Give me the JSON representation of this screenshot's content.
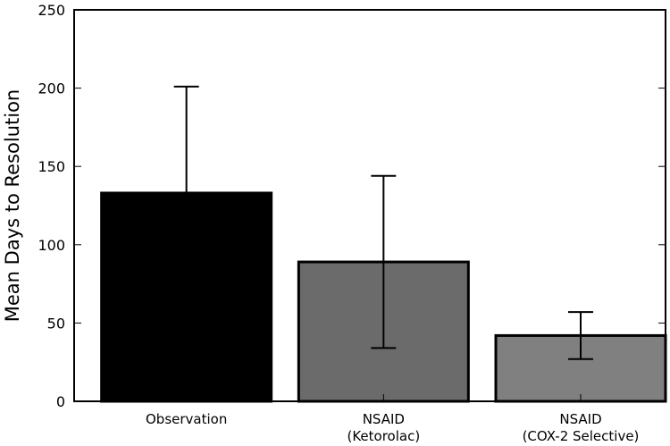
{
  "chart_data": {
    "type": "bar",
    "title": "",
    "xlabel": "",
    "ylabel": "Mean Days to Resolution",
    "ylim": [
      0,
      250
    ],
    "yticks": [
      0,
      50,
      100,
      150,
      200,
      250
    ],
    "grid": false,
    "categories": [
      [
        "Observation"
      ],
      [
        "NSAID",
        "(Ketorolac)"
      ],
      [
        "NSAID",
        "(COX-2 Selective)"
      ]
    ],
    "values": [
      133,
      89,
      42
    ],
    "error_low": [
      133,
      34,
      27
    ],
    "error_high": [
      201,
      144,
      57
    ],
    "bar_colors": [
      "#000000",
      "#6b6b6b",
      "#808080"
    ]
  }
}
